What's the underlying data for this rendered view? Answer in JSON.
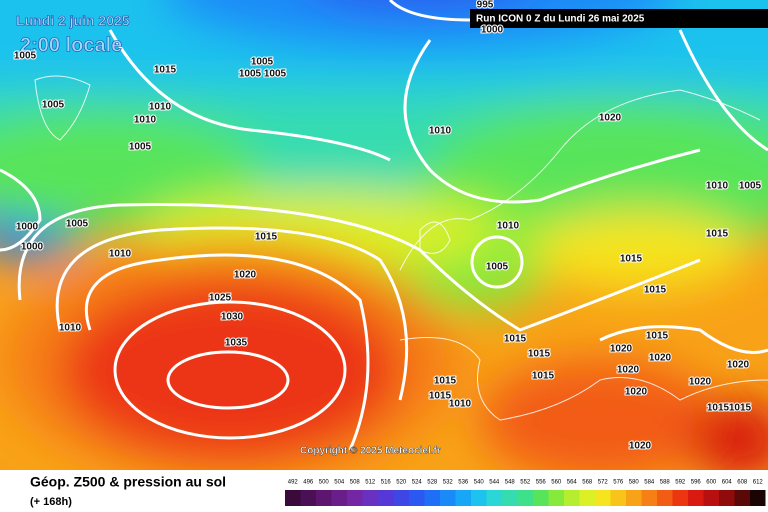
{
  "header": {
    "date": "Lundi 2 juin 2025",
    "time": "2:00 locale",
    "run": "Run ICON 0 Z du Lundi 26 mai 2025"
  },
  "map": {
    "copyright": "Copyright © 2025 Meteociel.fr",
    "isobar_labels": [
      "995",
      "1000",
      "1015",
      "1005",
      "1005",
      "1005",
      "1010",
      "1010",
      "1005",
      "1005",
      "1005",
      "1010",
      "1020",
      "1010",
      "1005",
      "1000",
      "1000",
      "1005",
      "1010",
      "1015",
      "1020",
      "1025",
      "1030",
      "1035",
      "1010",
      "1010",
      "1005",
      "1015",
      "1015",
      "1015",
      "1015",
      "1015",
      "1015",
      "1015",
      "1015",
      "1010",
      "1020",
      "1020",
      "1015",
      "1020",
      "1020",
      "1020",
      "1020",
      "1015",
      "1015",
      "1020"
    ]
  },
  "footer": {
    "title": "Géop. Z500 & pression au sol",
    "subtitle": "(+ 168h)",
    "scale_levels": [
      492,
      496,
      500,
      504,
      508,
      512,
      516,
      520,
      524,
      528,
      532,
      536,
      540,
      544,
      548,
      552,
      556,
      560,
      564,
      568,
      572,
      576,
      580,
      584,
      588,
      592,
      596,
      600,
      604,
      608,
      612
    ],
    "scale_colors": [
      "#3a0a3a",
      "#4b0f55",
      "#5c1670",
      "#6a1e8a",
      "#7426a4",
      "#6a30c0",
      "#5538d6",
      "#3e46e6",
      "#2a58f0",
      "#1e6ef6",
      "#1a8af8",
      "#18a6f6",
      "#1ec2ee",
      "#2ad6d6",
      "#34dcb0",
      "#3ee08a",
      "#58e45a",
      "#86ea3c",
      "#b4ee2e",
      "#dcf028",
      "#f6e41e",
      "#f8c41a",
      "#f8a218",
      "#f68016",
      "#f25c14",
      "#ec3612",
      "#d81a10",
      "#b81010",
      "#900c0c",
      "#5a0808",
      "#1a0404"
    ]
  }
}
